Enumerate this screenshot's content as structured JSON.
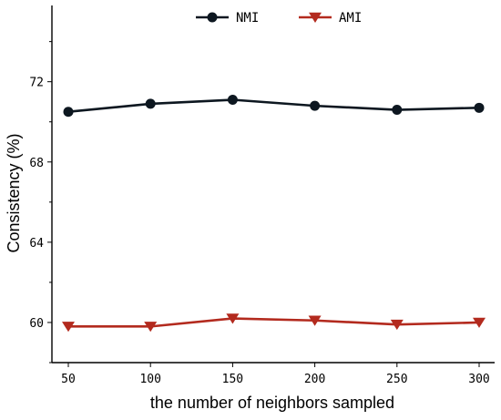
{
  "chart_data": {
    "type": "line",
    "title": "",
    "xlabel": "the number of neighbors sampled",
    "ylabel": "Consistency (%)",
    "x": [
      50,
      100,
      150,
      200,
      250,
      300
    ],
    "xticks": [
      "50",
      "100",
      "150",
      "200",
      "250",
      "300"
    ],
    "yticks": [
      60,
      64,
      68,
      72
    ],
    "ytick_labels": [
      "60",
      "64",
      "68",
      "72"
    ],
    "ylim": [
      58,
      75.8
    ],
    "grid": false,
    "legend_position": "top",
    "series": [
      {
        "name": "NMI",
        "values": [
          70.5,
          70.9,
          71.1,
          70.8,
          70.6,
          70.7
        ],
        "color": "#0d1720",
        "marker": "circle"
      },
      {
        "name": "AMI",
        "values": [
          59.8,
          59.8,
          60.2,
          60.1,
          59.9,
          60.0
        ],
        "color": "#b32a1e",
        "marker": "triangle-down"
      }
    ]
  }
}
